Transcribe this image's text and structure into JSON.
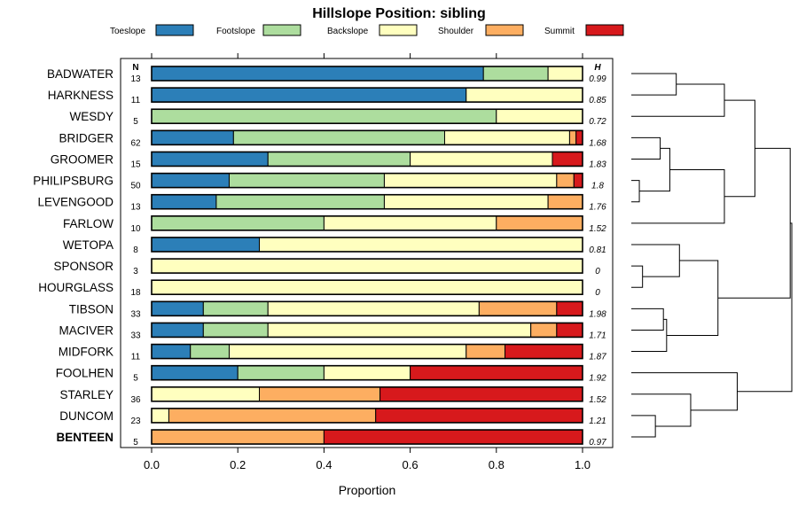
{
  "chart_data": {
    "type": "bar",
    "title": "Hillslope Position: sibling",
    "xlabel": "Proportion",
    "ylabel": "",
    "xlim": [
      0,
      1
    ],
    "x_ticks": [
      "0.0",
      "0.2",
      "0.4",
      "0.6",
      "0.8",
      "1.0"
    ],
    "n_header": "N",
    "h_header": "H",
    "highlight_category": "BENTEEN",
    "legend": [
      {
        "name": "Toeslope",
        "color": "#2c7fb8"
      },
      {
        "name": "Footslope",
        "color": "#addd9e"
      },
      {
        "name": "Backslope",
        "color": "#ffffbf"
      },
      {
        "name": "Shoulder",
        "color": "#fdae61"
      },
      {
        "name": "Summit",
        "color": "#d7191c"
      }
    ],
    "categories": [
      "BADWATER",
      "HARKNESS",
      "WESDY",
      "BRIDGER",
      "GROOMER",
      "PHILIPSBURG",
      "LEVENGOOD",
      "FARLOW",
      "WETOPA",
      "SPONSOR",
      "HOURGLASS",
      "TIBSON",
      "MACIVER",
      "MIDFORK",
      "FOOLHEN",
      "STARLEY",
      "DUNCOM",
      "BENTEEN"
    ],
    "n": [
      "13",
      "11",
      "5",
      "62",
      "15",
      "50",
      "13",
      "10",
      "8",
      "3",
      "18",
      "33",
      "33",
      "11",
      "5",
      "36",
      "23",
      "5"
    ],
    "h": [
      "0.99",
      "0.85",
      "0.72",
      "1.68",
      "1.83",
      "1.8",
      "1.76",
      "1.52",
      "0.81",
      "0",
      "0",
      "1.98",
      "1.71",
      "1.87",
      "1.92",
      "1.52",
      "1.21",
      "0.97"
    ],
    "series": [
      {
        "name": "Toeslope",
        "values": [
          0.77,
          0.73,
          0,
          0.19,
          0.27,
          0.18,
          0.15,
          0,
          0.25,
          0,
          0,
          0.12,
          0.12,
          0.09,
          0.2,
          0,
          0,
          0
        ]
      },
      {
        "name": "Footslope",
        "values": [
          0.15,
          0,
          0.8,
          0.49,
          0.33,
          0.36,
          0.39,
          0.4,
          0,
          0,
          0,
          0.15,
          0.15,
          0.09,
          0.2,
          0,
          0,
          0
        ]
      },
      {
        "name": "Backslope",
        "values": [
          0.08,
          0.27,
          0.2,
          0.29,
          0.33,
          0.4,
          0.38,
          0.4,
          0.75,
          1,
          1,
          0.49,
          0.61,
          0.55,
          0.2,
          0.25,
          0.04,
          0
        ]
      },
      {
        "name": "Shoulder",
        "values": [
          0,
          0,
          0,
          0.015,
          0,
          0.04,
          0.08,
          0.2,
          0,
          0,
          0,
          0.18,
          0.06,
          0.09,
          0,
          0.28,
          0.48,
          0.4
        ]
      },
      {
        "name": "Summit",
        "values": [
          0,
          0,
          0,
          0.015,
          0.07,
          0.02,
          0,
          0,
          0,
          0,
          0,
          0.06,
          0.06,
          0.18,
          0.4,
          0.47,
          0.48,
          0.6
        ]
      }
    ],
    "dendrogram": {
      "leaf_order": [
        "BADWATER",
        "HARKNESS",
        "WESDY",
        "BRIDGER",
        "GROOMER",
        "PHILIPSBURG",
        "LEVENGOOD",
        "FARLOW",
        "WETOPA",
        "SPONSOR",
        "HOURGLASS",
        "TIBSON",
        "MACIVER",
        "MIDFORK",
        "FOOLHEN",
        "STARLEY",
        "DUNCOM",
        "BENTEEN"
      ],
      "merges": [
        [
          0,
          1,
          0.28
        ],
        [
          0,
          2,
          0.58
        ],
        [
          3,
          4,
          0.18
        ],
        [
          5,
          6,
          0.05
        ],
        [
          3,
          5,
          0.24
        ],
        [
          3,
          7,
          0.58
        ],
        [
          0,
          3,
          0.77
        ],
        [
          9,
          10,
          0.07
        ],
        [
          8,
          9,
          0.3
        ],
        [
          11,
          12,
          0.2
        ],
        [
          11,
          13,
          0.22
        ],
        [
          8,
          11,
          0.54
        ],
        [
          0,
          8,
          0.99
        ],
        [
          16,
          17,
          0.15
        ],
        [
          15,
          16,
          0.37
        ],
        [
          14,
          15,
          0.66
        ],
        [
          0,
          14,
          1.0
        ]
      ]
    }
  }
}
